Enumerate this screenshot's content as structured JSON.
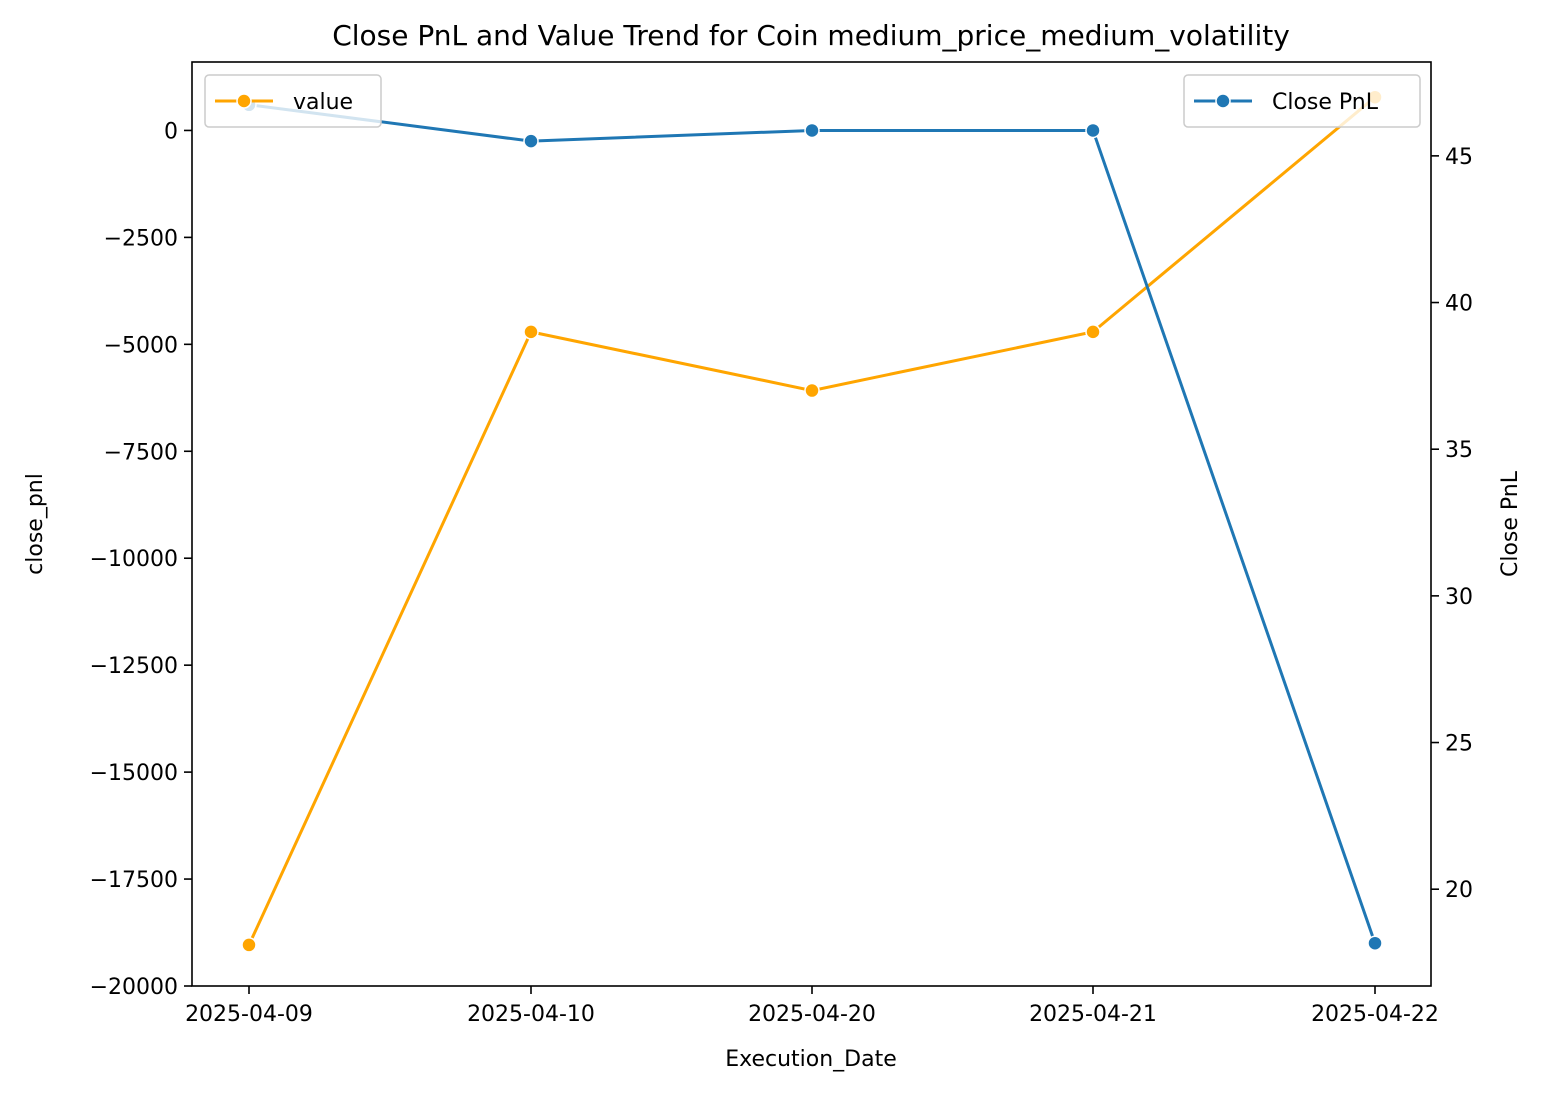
{
  "chart_data": {
    "type": "line",
    "title": "Close PnL and Value Trend for Coin medium_price_medium_volatility",
    "xlabel": "Execution_Date",
    "ylabel_left": "close_pnl",
    "ylabel_right": "Close PnL",
    "categories": [
      "2025-04-09",
      "2025-04-10",
      "2025-04-20",
      "2025-04-21",
      "2025-04-22"
    ],
    "y_left": {
      "lim": [
        -20000,
        1600
      ],
      "ticks": [
        0,
        -2500,
        -5000,
        -7500,
        -10000,
        -12500,
        -15000,
        -17500,
        -20000
      ],
      "tick_labels": [
        "0",
        "−2500",
        "−5000",
        "−7500",
        "−10000",
        "−12500",
        "−15000",
        "−17500",
        "−20000"
      ]
    },
    "y_right": {
      "lim": [
        16.7,
        48.2
      ],
      "ticks": [
        20,
        25,
        30,
        35,
        40,
        45
      ],
      "tick_labels": [
        "20",
        "25",
        "30",
        "35",
        "40",
        "45"
      ]
    },
    "series": [
      {
        "name": "value",
        "axis": "right",
        "color": "#FFA500",
        "values": [
          18.1,
          39.0,
          37.0,
          39.0,
          47.0
        ]
      },
      {
        "name": "Close PnL",
        "axis": "left",
        "color": "#1F77B4",
        "values": [
          600,
          -250,
          0,
          0,
          -19000
        ]
      }
    ],
    "legends": [
      {
        "position": "upper-left",
        "series": "value"
      },
      {
        "position": "upper-right",
        "series": "Close PnL"
      }
    ],
    "grid": false
  }
}
